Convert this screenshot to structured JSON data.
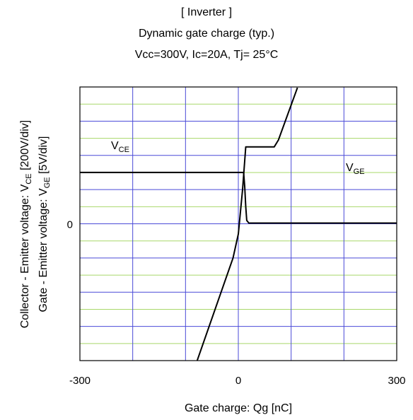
{
  "chart_data": {
    "type": "line",
    "title": "[ Inverter ]",
    "subtitle": "Dynamic gate charge  (typ.)",
    "conditions": "Vcc=300V,   Ic=20A,   Tj= 25°C",
    "xlabel": "Gate charge: Qg [nC]",
    "ylabel_left": {
      "prefix": "Collector - Emitter voltage: V",
      "sub": "CE",
      "suffix": " [200V/div]"
    },
    "ylabel_right": {
      "prefix": "Gate - Emitter voltage:    V",
      "sub": "GE",
      "suffix": " [5V/div]"
    },
    "xlim": [
      -300,
      300
    ],
    "ylim_div": [
      -4,
      4
    ],
    "x_ticks": [
      {
        "value": -300,
        "label": "-300"
      },
      {
        "value": 0,
        "label": "0"
      },
      {
        "value": 300,
        "label": "300"
      }
    ],
    "y_zero_label": "0",
    "x_grid_step": 100,
    "minor_grid_step_div": 0.5,
    "grid": true,
    "series": [
      {
        "name": {
          "main": "V",
          "sub": "CE"
        },
        "unit_per_div": "200V",
        "points": [
          [
            -300,
            1.5
          ],
          [
            10,
            1.5
          ],
          [
            12,
            1.1
          ],
          [
            14,
            0.5
          ],
          [
            16,
            0.1
          ],
          [
            20,
            0.02
          ],
          [
            300,
            0.02
          ]
        ]
      },
      {
        "name": {
          "main": "V",
          "sub": "GE"
        },
        "unit_per_div": "5V",
        "points": [
          [
            -78,
            -4.0
          ],
          [
            -10,
            -1.0
          ],
          [
            0,
            -0.3
          ],
          [
            8,
            1.0
          ],
          [
            14,
            2.25
          ],
          [
            68,
            2.25
          ],
          [
            76,
            2.45
          ],
          [
            112,
            3.98
          ]
        ]
      }
    ]
  }
}
